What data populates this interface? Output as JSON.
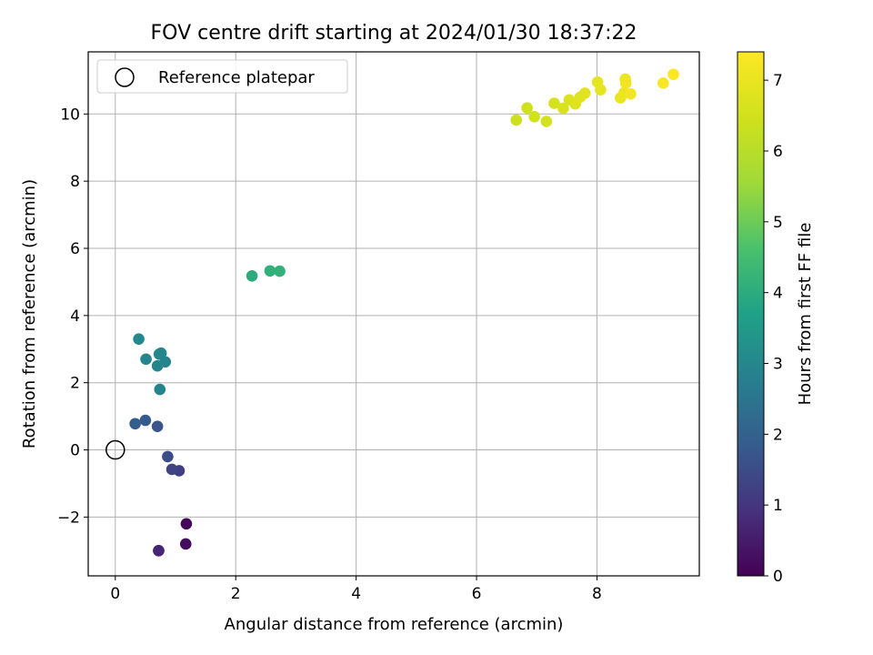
{
  "chart_data": {
    "type": "scatter",
    "title": "FOV centre drift starting at 2024/01/30 18:37:22",
    "xlabel": "Angular distance from reference (arcmin)",
    "ylabel": "Rotation from reference (arcmin)",
    "xlim": [
      -0.45,
      9.7
    ],
    "ylim": [
      -3.75,
      11.85
    ],
    "xticks": [
      0,
      2,
      4,
      6,
      8
    ],
    "xtick_labels": [
      "0",
      "2",
      "4",
      "6",
      "8"
    ],
    "yticks": [
      -2,
      0,
      2,
      4,
      6,
      8,
      10
    ],
    "ytick_labels": [
      "−2",
      "0",
      "2",
      "4",
      "6",
      "8",
      "10"
    ],
    "grid": true,
    "legend": {
      "location": "upper-left",
      "entries": [
        "Reference platepar"
      ]
    },
    "reference_point": {
      "x": 0,
      "y": 0
    },
    "colorbar": {
      "label": "Hours from first FF file",
      "range": [
        0,
        7.4
      ],
      "ticks": [
        0,
        1,
        2,
        3,
        4,
        5,
        6,
        7
      ],
      "tick_labels": [
        "0",
        "1",
        "2",
        "3",
        "4",
        "5",
        "6",
        "7"
      ],
      "colormap": "viridis"
    },
    "points": [
      {
        "x": 1.18,
        "y": -2.2,
        "hours": 0.1
      },
      {
        "x": 1.17,
        "y": -2.8,
        "hours": 0.2
      },
      {
        "x": 0.72,
        "y": -3.0,
        "hours": 0.6
      },
      {
        "x": 0.72,
        "y": -3.0,
        "hours": 0.7
      },
      {
        "x": 1.06,
        "y": -0.62,
        "hours": 1.2
      },
      {
        "x": 0.94,
        "y": -0.58,
        "hours": 1.3
      },
      {
        "x": 0.87,
        "y": -0.2,
        "hours": 1.5
      },
      {
        "x": 0.7,
        "y": 0.7,
        "hours": 1.7
      },
      {
        "x": 0.5,
        "y": 0.88,
        "hours": 1.8
      },
      {
        "x": 0.33,
        "y": 0.78,
        "hours": 1.9
      },
      {
        "x": 0.74,
        "y": 1.8,
        "hours": 2.9
      },
      {
        "x": 0.7,
        "y": 2.5,
        "hours": 2.9
      },
      {
        "x": 0.83,
        "y": 2.62,
        "hours": 2.95
      },
      {
        "x": 0.51,
        "y": 2.7,
        "hours": 2.95
      },
      {
        "x": 0.73,
        "y": 2.85,
        "hours": 3.0
      },
      {
        "x": 0.76,
        "y": 2.88,
        "hours": 3.0
      },
      {
        "x": 0.39,
        "y": 3.3,
        "hours": 3.05
      },
      {
        "x": 2.27,
        "y": 5.18,
        "hours": 4.0
      },
      {
        "x": 2.57,
        "y": 5.33,
        "hours": 4.1
      },
      {
        "x": 2.73,
        "y": 5.32,
        "hours": 4.15
      },
      {
        "x": 6.66,
        "y": 9.82,
        "hours": 6.4
      },
      {
        "x": 6.84,
        "y": 10.18,
        "hours": 6.45
      },
      {
        "x": 6.96,
        "y": 9.92,
        "hours": 6.5
      },
      {
        "x": 7.16,
        "y": 9.78,
        "hours": 6.55
      },
      {
        "x": 7.29,
        "y": 10.32,
        "hours": 6.6
      },
      {
        "x": 7.44,
        "y": 10.17,
        "hours": 6.65
      },
      {
        "x": 7.54,
        "y": 10.42,
        "hours": 6.7
      },
      {
        "x": 7.64,
        "y": 10.3,
        "hours": 6.75
      },
      {
        "x": 7.72,
        "y": 10.5,
        "hours": 6.8
      },
      {
        "x": 7.8,
        "y": 10.62,
        "hours": 6.85
      },
      {
        "x": 8.01,
        "y": 10.95,
        "hours": 6.9
      },
      {
        "x": 8.06,
        "y": 10.72,
        "hours": 6.95
      },
      {
        "x": 8.39,
        "y": 10.48,
        "hours": 7.0
      },
      {
        "x": 8.45,
        "y": 10.63,
        "hours": 7.05
      },
      {
        "x": 8.47,
        "y": 11.04,
        "hours": 7.1
      },
      {
        "x": 8.48,
        "y": 10.92,
        "hours": 7.15
      },
      {
        "x": 8.56,
        "y": 10.6,
        "hours": 7.2
      },
      {
        "x": 9.1,
        "y": 10.92,
        "hours": 7.3
      },
      {
        "x": 9.27,
        "y": 11.18,
        "hours": 7.4
      }
    ]
  }
}
